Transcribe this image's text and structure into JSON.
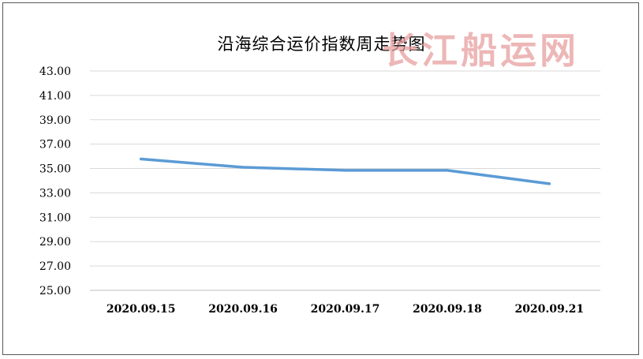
{
  "chart_data": {
    "type": "line",
    "title": "沿海综合运价指数周走势图",
    "watermark": "长江船运网",
    "categories": [
      "2020.09.15",
      "2020.09.16",
      "2020.09.17",
      "2020.09.18",
      "2020.09.21"
    ],
    "series": [
      {
        "values": [
          35.78,
          35.1,
          34.85,
          34.85,
          33.75
        ]
      }
    ],
    "y_ticks": [
      "25.00",
      "27.00",
      "29.00",
      "31.00",
      "33.00",
      "35.00",
      "37.00",
      "39.00",
      "41.00",
      "43.00"
    ],
    "ylim": [
      25,
      43
    ],
    "grid": true,
    "legend": "none",
    "colors": {
      "line": "#5b9bd5",
      "grid": "#d9d9d9",
      "axis": "#bfbfbf"
    }
  }
}
